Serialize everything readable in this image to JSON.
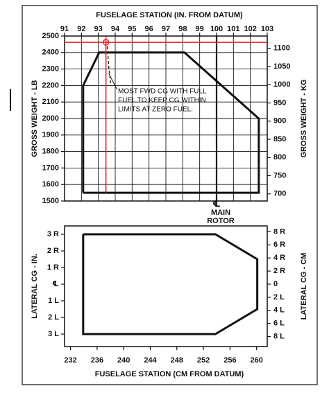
{
  "chart_data": [
    {
      "type": "line",
      "x_label": "FUSELAGE STATION (IN. FROM DATUM)",
      "x_axis_position": "top",
      "y_label": "GROSS WEIGHT - LB",
      "y2_label": "GROSS WEIGHT - KG",
      "x": [
        92.1,
        92.1,
        93.05,
        98.1,
        102.5,
        102.5,
        92.1
      ],
      "values": [
        1550,
        2200,
        2400,
        2400,
        2000,
        1550,
        1550
      ],
      "color": "#111111",
      "xlim": [
        91,
        103
      ],
      "xticks": [
        91,
        92,
        93,
        94,
        95,
        96,
        97,
        98,
        99,
        100,
        101,
        102,
        103
      ],
      "ylim": [
        1500,
        2500
      ],
      "yticks": [
        1500,
        1600,
        1700,
        1800,
        1900,
        2000,
        2100,
        2200,
        2300,
        2400,
        2500
      ],
      "y2lim": [
        680.4,
        1134
      ],
      "y2ticks": [
        700,
        750,
        800,
        850,
        900,
        950,
        1000,
        1050,
        1100
      ],
      "grid": true,
      "marker": {
        "x": 93.45,
        "y": 2462,
        "color": "#e8202a"
      },
      "annotation": [
        "MOST FWD CG WITH FULL",
        "FUEL TO KEEP CG WITHIN",
        "LIMITS AT ZERO FUEL."
      ],
      "rotor_mast": {
        "x": 100,
        "symbol": "℄",
        "label": [
          "MAIN",
          "ROTOR"
        ]
      }
    },
    {
      "type": "line",
      "x_label": "FUSELAGE STATION (CM FROM DATUM)",
      "x_axis_position": "bottom",
      "y_label": "LATERAL CG - IN.",
      "y2_label": "LATERAL CG - CM",
      "x": [
        233.9,
        253.8,
        260.1,
        260.1,
        253.8,
        233.9,
        233.9
      ],
      "values": [
        3,
        3,
        1.5,
        -1.5,
        -3,
        -3,
        3
      ],
      "color": "#111111",
      "xlim": [
        231.1,
        261.6
      ],
      "xticks": [
        232,
        236,
        240,
        244,
        248,
        252,
        256,
        260
      ],
      "ylim": [
        -3.75,
        3.5
      ],
      "yticks": [
        {
          "value": 3,
          "label": "3 R"
        },
        {
          "value": 2,
          "label": "2 R"
        },
        {
          "value": 1,
          "label": "1 R"
        },
        {
          "value": 0,
          "label": "℄"
        },
        {
          "value": -1,
          "label": "1 L"
        },
        {
          "value": -2,
          "label": "2 L"
        },
        {
          "value": -3,
          "label": "3 L"
        }
      ],
      "y2lim": [
        -9.525,
        8.89
      ],
      "y2ticks": [
        {
          "value": 8,
          "label": "8 R"
        },
        {
          "value": 6,
          "label": "6 R"
        },
        {
          "value": 4,
          "label": "4 R"
        },
        {
          "value": 2,
          "label": "2 R"
        },
        0,
        {
          "value": -2,
          "label": "2 L"
        },
        {
          "value": -4,
          "label": "4 L"
        },
        {
          "value": -6,
          "label": "6 L"
        },
        {
          "value": -8,
          "label": "8 L"
        }
      ],
      "grid": false
    }
  ]
}
